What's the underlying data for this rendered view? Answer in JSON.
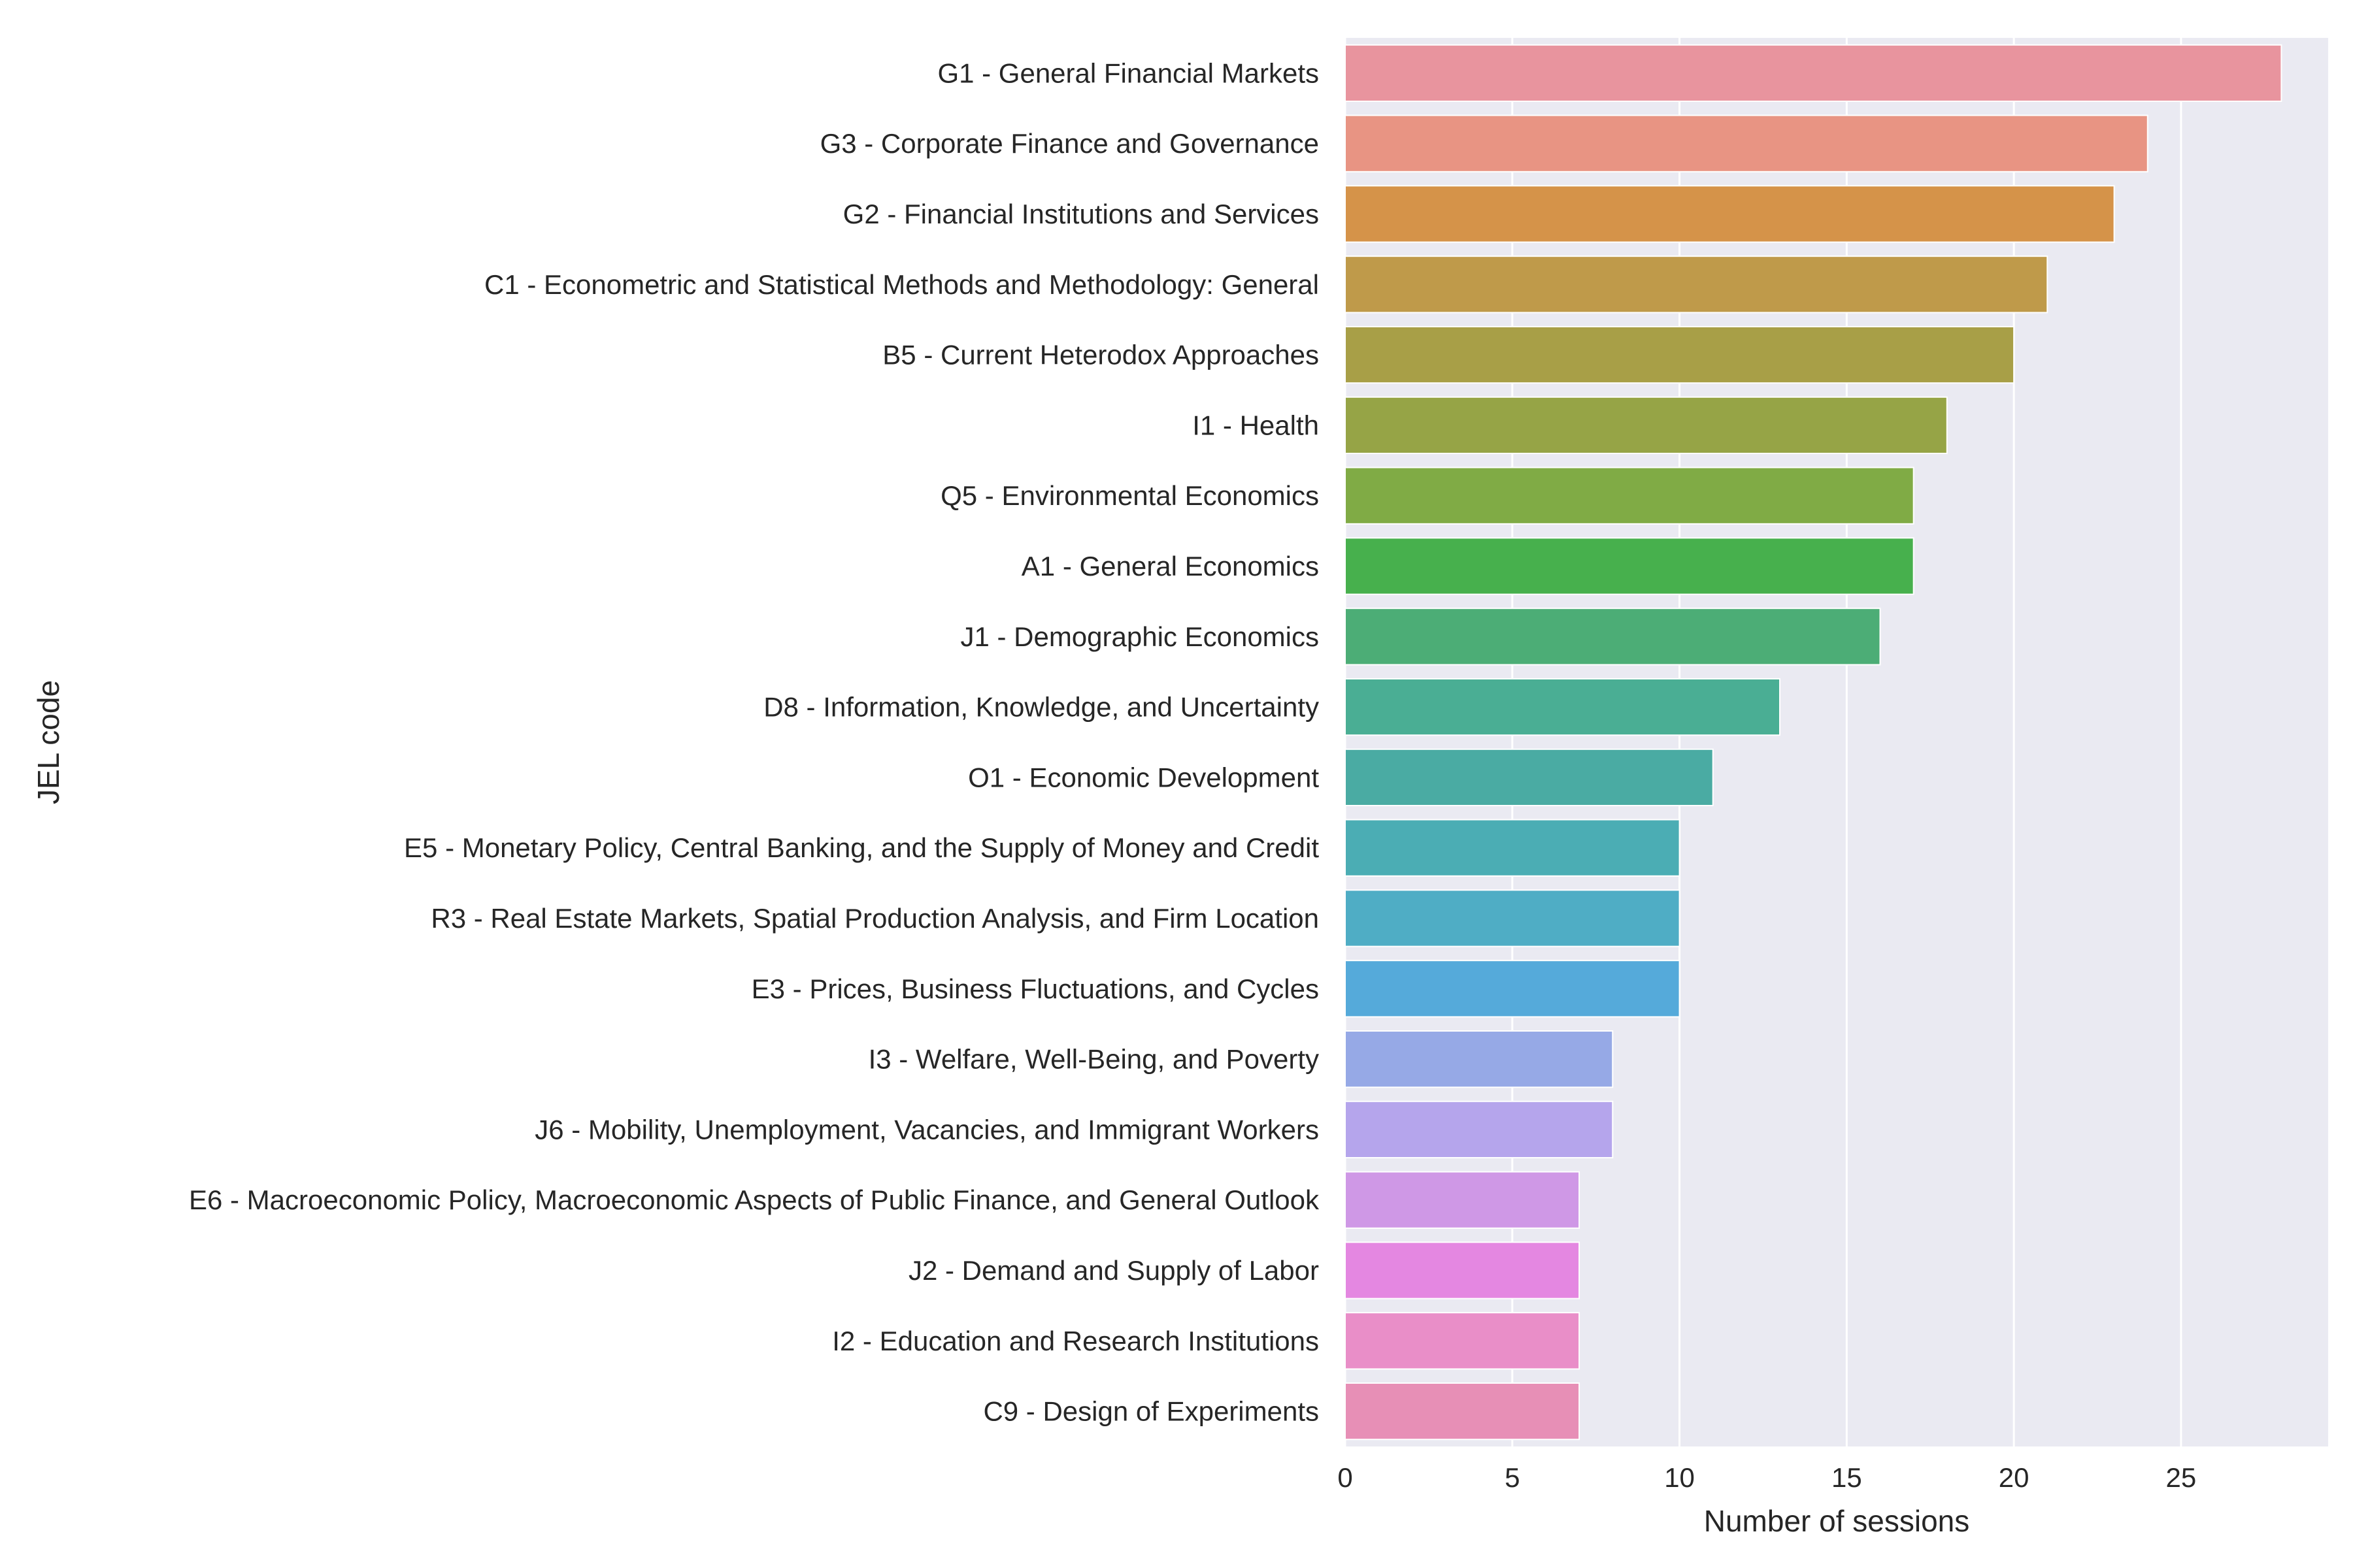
{
  "chart_data": {
    "type": "bar",
    "orientation": "horizontal",
    "title": "",
    "xlabel": "Number of sessions",
    "ylabel": "JEL code",
    "xlim": [
      0,
      29.4
    ],
    "xticks": [
      0,
      5,
      10,
      15,
      20,
      25
    ],
    "grid": true,
    "categories": [
      "G1 - General Financial Markets",
      "G3 - Corporate Finance and Governance",
      "G2 - Financial Institutions and Services",
      "C1 - Econometric and Statistical Methods and Methodology: General",
      "B5 - Current Heterodox Approaches",
      "I1 - Health",
      "Q5 - Environmental Economics",
      "A1 - General Economics",
      "J1 - Demographic Economics",
      "D8 - Information, Knowledge, and Uncertainty",
      "O1 - Economic Development",
      "E5 - Monetary Policy, Central Banking, and the Supply of Money and Credit",
      "R3 - Real Estate Markets, Spatial Production Analysis, and Firm Location",
      "E3 - Prices, Business Fluctuations, and Cycles",
      "I3 - Welfare, Well-Being, and Poverty",
      "J6 - Mobility, Unemployment, Vacancies, and Immigrant Workers",
      "E6 - Macroeconomic Policy, Macroeconomic Aspects of Public Finance, and General Outlook",
      "J2 - Demand and Supply of Labor",
      "I2 - Education and Research Institutions",
      "C9 - Design of Experiments"
    ],
    "values": [
      28,
      24,
      23,
      21,
      20,
      18,
      17,
      17,
      16,
      13,
      11,
      10,
      10,
      10,
      8,
      8,
      7,
      7,
      7,
      7
    ],
    "colors": [
      "#e8949e",
      "#e89483",
      "#d59349",
      "#bf9a4a",
      "#a89f47",
      "#96a446",
      "#80ab45",
      "#47b04d",
      "#4cad76",
      "#4aae94",
      "#4aaba3",
      "#4badb4",
      "#4fadc5",
      "#55aada",
      "#96a9e6",
      "#b5a5ec",
      "#cf98e6",
      "#e487e1",
      "#e98ec8",
      "#e78fb6"
    ],
    "plot_background": "#eaeaf2",
    "grid_color": "#ffffff"
  }
}
